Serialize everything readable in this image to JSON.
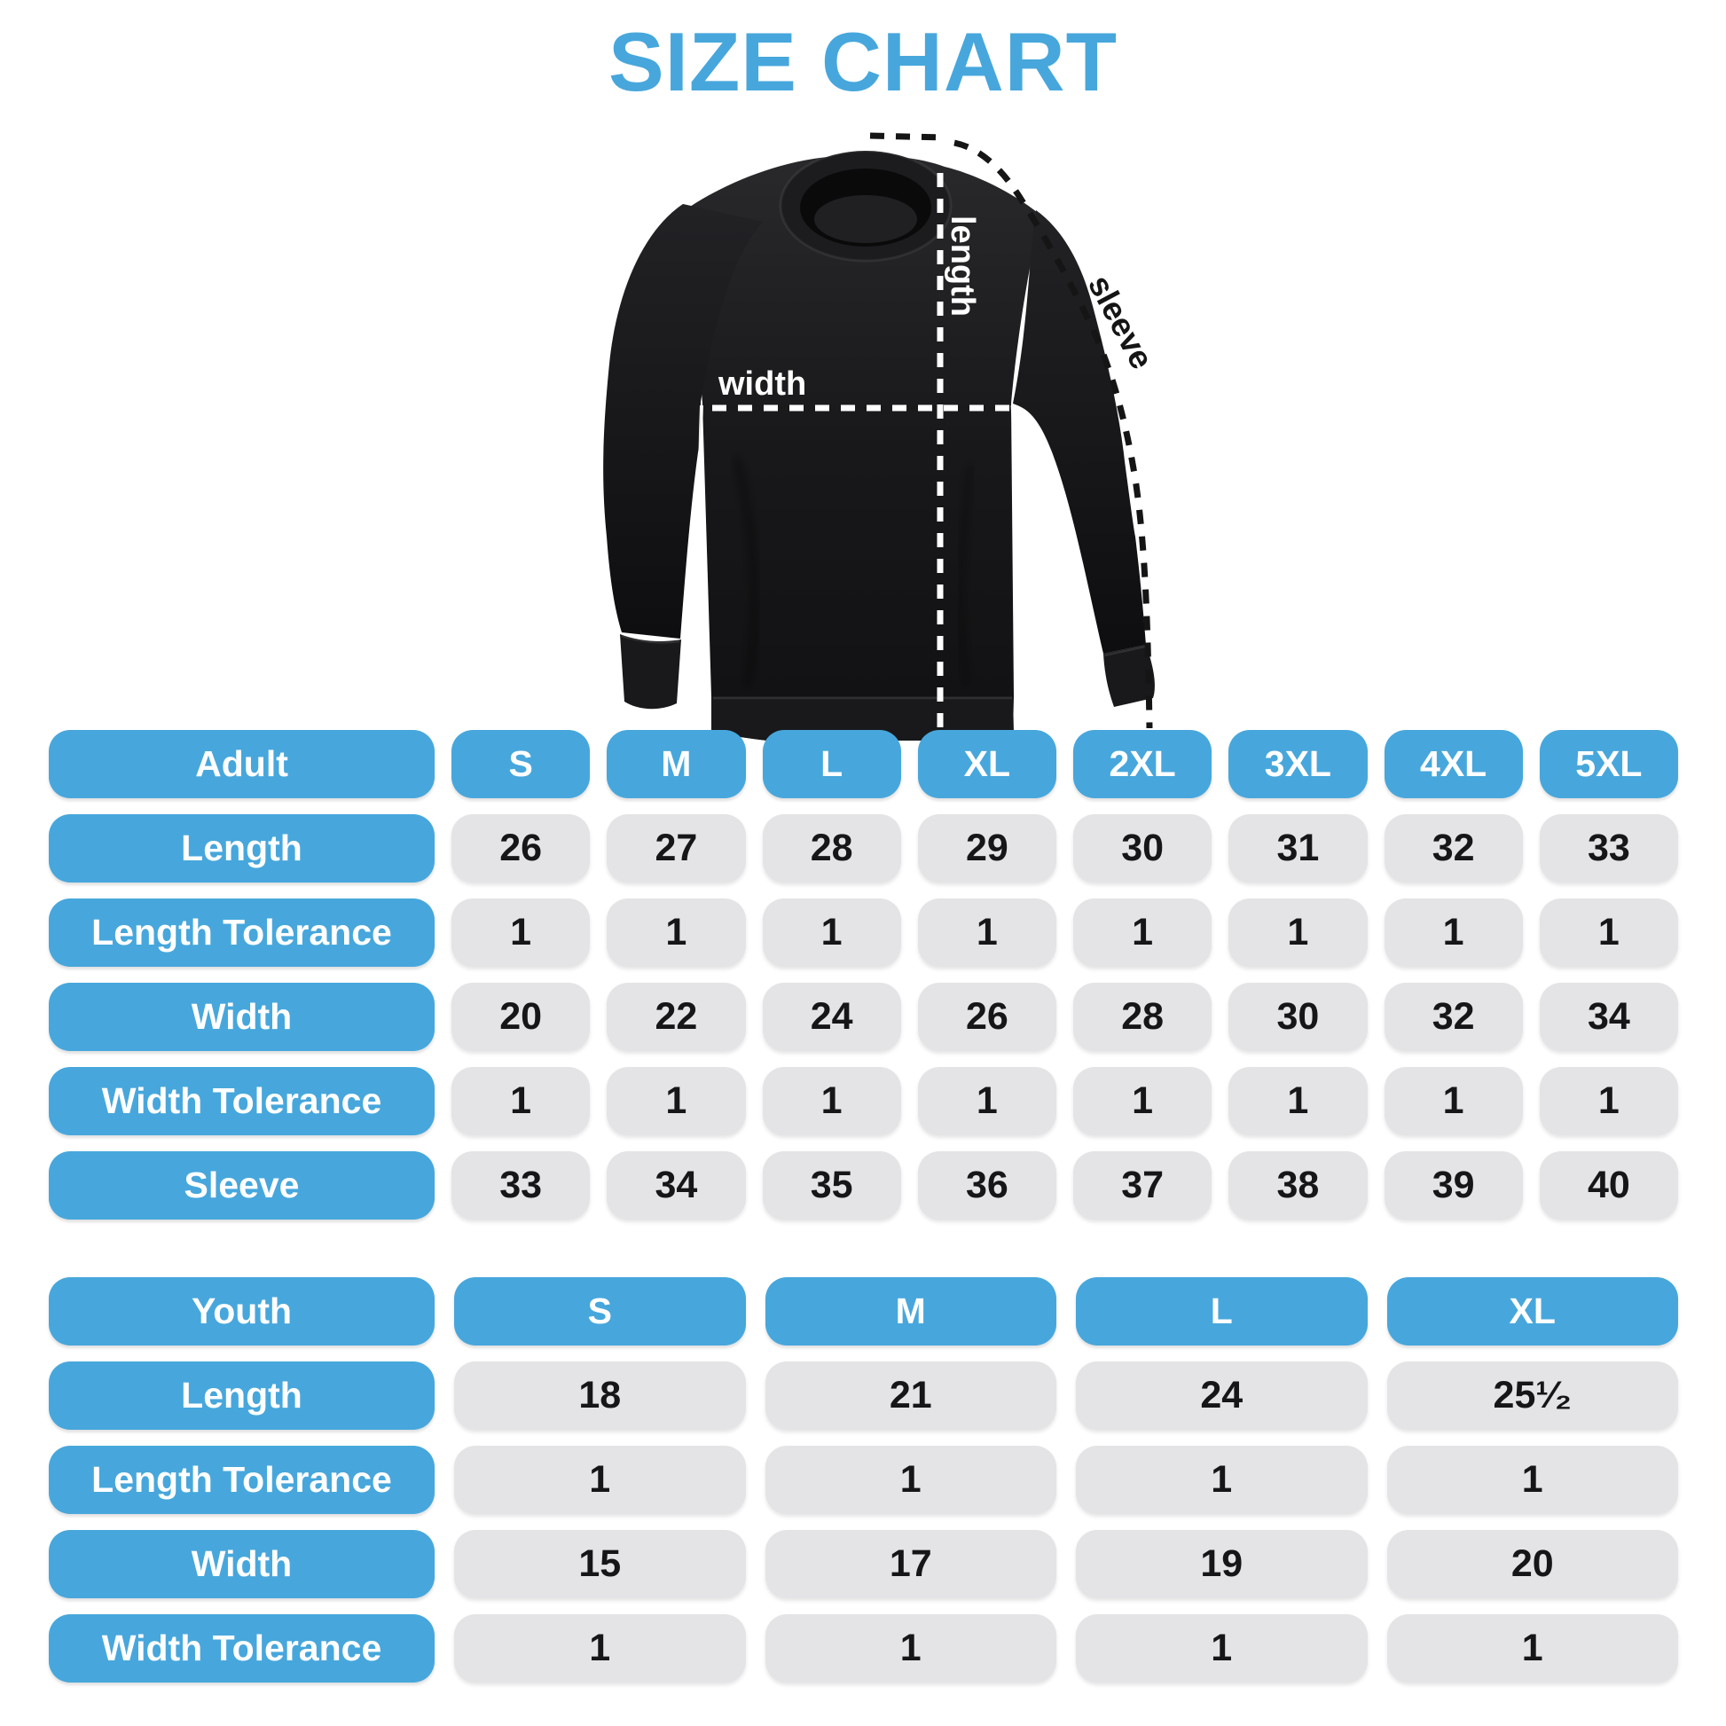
{
  "title": "SIZE CHART",
  "diagram": {
    "length_label": "length",
    "width_label": "width",
    "sleeve_label": "sleeve"
  },
  "colors": {
    "accent_blue": "#47A7DC",
    "cell_gray": "#E4E4E6",
    "value_text": "#161618",
    "garment_black": "#1B1B1D"
  },
  "chart_data": [
    {
      "type": "table",
      "title": "Adult",
      "header": [
        "Adult",
        "S",
        "M",
        "L",
        "XL",
        "2XL",
        "3XL",
        "4XL",
        "5XL"
      ],
      "rows": [
        {
          "label": "Length",
          "values": [
            "26",
            "27",
            "28",
            "29",
            "30",
            "31",
            "32",
            "33"
          ]
        },
        {
          "label": "Length Tolerance",
          "values": [
            "1",
            "1",
            "1",
            "1",
            "1",
            "1",
            "1",
            "1"
          ]
        },
        {
          "label": "Width",
          "values": [
            "20",
            "22",
            "24",
            "26",
            "28",
            "30",
            "32",
            "34"
          ]
        },
        {
          "label": "Width Tolerance",
          "values": [
            "1",
            "1",
            "1",
            "1",
            "1",
            "1",
            "1",
            "1"
          ]
        },
        {
          "label": "Sleeve",
          "values": [
            "33",
            "34",
            "35",
            "36",
            "37",
            "38",
            "39",
            "40"
          ]
        }
      ]
    },
    {
      "type": "table",
      "title": "Youth",
      "header": [
        "Youth",
        "S",
        "M",
        "L",
        "XL"
      ],
      "rows": [
        {
          "label": "Length",
          "values": [
            "18",
            "21",
            "24",
            "25¹⁄₂"
          ]
        },
        {
          "label": "Length Tolerance",
          "values": [
            "1",
            "1",
            "1",
            "1"
          ]
        },
        {
          "label": "Width",
          "values": [
            "15",
            "17",
            "19",
            "20"
          ]
        },
        {
          "label": "Width Tolerance",
          "values": [
            "1",
            "1",
            "1",
            "1"
          ]
        }
      ]
    }
  ]
}
